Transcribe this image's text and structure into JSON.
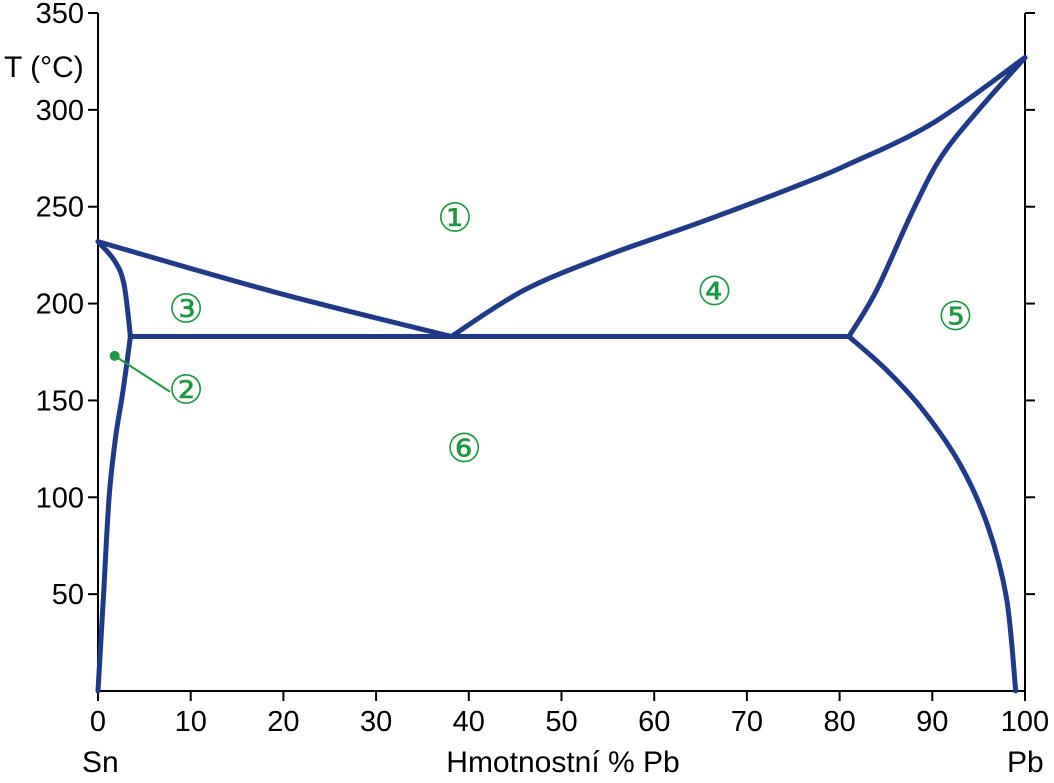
{
  "chart_data": {
    "type": "line",
    "title": "",
    "ylabel": "T (°C)",
    "xlabel": "Hmotnostní % Pb",
    "x_left_label": "Sn",
    "x_right_label": "Pb",
    "xlim": [
      0,
      100
    ],
    "ylim": [
      0,
      350
    ],
    "x_ticks": [
      0,
      10,
      20,
      30,
      40,
      50,
      60,
      70,
      80,
      90,
      100
    ],
    "y_ticks": [
      50,
      100,
      150,
      200,
      250,
      300,
      350
    ],
    "grid": false,
    "colors": {
      "curve": "#1f3a8a",
      "region_label": "#1a9a40",
      "axis": "#000000"
    },
    "series": [
      {
        "name": "",
        "points": [
          [
            0,
            232
          ],
          [
            19,
            206
          ],
          [
            38.1,
            183
          ]
        ]
      },
      {
        "name": "",
        "points": [
          [
            38.1,
            183
          ],
          [
            46,
            207
          ],
          [
            55,
            225
          ],
          [
            65,
            242
          ],
          [
            75,
            260
          ],
          [
            81,
            272
          ],
          [
            90,
            293
          ],
          [
            100,
            327
          ]
        ]
      },
      {
        "name": "",
        "points": [
          [
            0,
            232
          ],
          [
            1.8,
            222
          ],
          [
            2.8,
            210
          ],
          [
            3.5,
            183
          ]
        ]
      },
      {
        "name": "",
        "points": [
          [
            3.5,
            183
          ],
          [
            2.7,
            155
          ],
          [
            1.9,
            131
          ],
          [
            1.2,
            100
          ],
          [
            0.6,
            50
          ],
          [
            0,
            0
          ]
        ]
      },
      {
        "name": "",
        "points": [
          [
            3.5,
            183
          ],
          [
            81,
            183
          ]
        ]
      },
      {
        "name": "",
        "points": [
          [
            81,
            183
          ],
          [
            84,
            207
          ],
          [
            88,
            249
          ],
          [
            91,
            276
          ],
          [
            95,
            300
          ],
          [
            100,
            327
          ]
        ]
      },
      {
        "name": "",
        "points": [
          [
            81,
            183
          ],
          [
            85,
            166
          ],
          [
            89,
            145
          ],
          [
            93,
            117
          ],
          [
            96,
            85
          ],
          [
            98,
            48
          ],
          [
            99,
            0
          ]
        ]
      }
    ],
    "region_labels": [
      {
        "text": "①",
        "x": 38.5,
        "y": 244
      },
      {
        "text": "②",
        "x": 9.5,
        "y": 155
      },
      {
        "text": "③",
        "x": 9.5,
        "y": 197
      },
      {
        "text": "④",
        "x": 66.5,
        "y": 206
      },
      {
        "text": "⑤",
        "x": 92.5,
        "y": 193
      },
      {
        "text": "⑥",
        "x": 39.5,
        "y": 125
      }
    ],
    "region2_pointer": {
      "x": 1.8,
      "y": 173
    }
  }
}
